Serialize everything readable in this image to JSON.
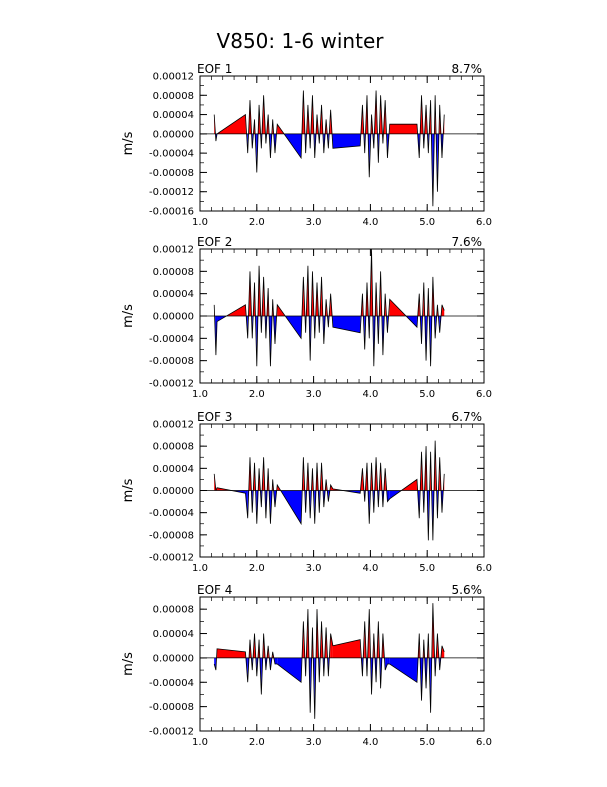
{
  "figure": {
    "title": "V850: 1-6 winter",
    "ylabel": "m/s"
  },
  "chart_data": [
    {
      "type": "area",
      "panel_label": "EOF 1",
      "percent": "8.7%",
      "xlim": [
        1.0,
        6.0
      ],
      "ylim": [
        -0.00016,
        0.00012
      ],
      "xticks": [
        "1.0",
        "2.0",
        "3.0",
        "4.0",
        "5.0",
        "6.0"
      ],
      "yticks": [
        "0.00012",
        "0.00008",
        "0.00004",
        "0.00000",
        "-0.00004",
        "-0.00008",
        "-0.00012",
        "-0.00016"
      ],
      "ylabel": "m/s",
      "positive_color": "#ff0000",
      "negative_color": "#0000ff",
      "x": [
        1.25,
        1.28,
        1.3,
        1.8,
        1.84,
        1.88,
        1.92,
        1.96,
        2.0,
        2.04,
        2.08,
        2.12,
        2.16,
        2.2,
        2.24,
        2.28,
        2.32,
        2.36,
        2.78,
        2.82,
        2.86,
        2.9,
        2.94,
        2.98,
        3.02,
        3.06,
        3.1,
        3.14,
        3.18,
        3.22,
        3.26,
        3.3,
        3.34,
        3.82,
        3.86,
        3.9,
        3.94,
        3.98,
        4.02,
        4.06,
        4.1,
        4.14,
        4.18,
        4.22,
        4.26,
        4.3,
        4.34,
        4.82,
        4.86,
        4.9,
        4.94,
        4.98,
        5.02,
        5.06,
        5.1,
        5.14,
        5.18,
        5.22,
        5.26,
        5.3
      ],
      "y": [
        4e-05,
        -1.5e-05,
        0.0,
        4e-05,
        -4e-05,
        7e-05,
        -3e-05,
        3e-05,
        -8e-05,
        6e-05,
        -3e-05,
        8e-05,
        -2e-05,
        4e-05,
        -5e-05,
        3e-05,
        -4e-05,
        2e-05,
        -5e-05,
        9e-05,
        -4e-05,
        6e-05,
        -3e-05,
        8e-05,
        -5e-05,
        4e-05,
        -2e-05,
        6e-05,
        -4e-05,
        3e-05,
        -3e-05,
        5e-05,
        -3e-05,
        -2.5e-05,
        6e-05,
        -4e-05,
        8e-05,
        -9e-05,
        4e-05,
        -3e-05,
        9e-05,
        -6e-05,
        8e-05,
        -2e-05,
        7e-05,
        -5e-05,
        2e-05,
        2e-05,
        -5e-05,
        8e-05,
        -3e-05,
        6e-05,
        -4e-05,
        7e-05,
        -0.00015,
        8e-05,
        -0.00012,
        6e-05,
        -5e-05,
        4e-05
      ]
    },
    {
      "type": "area",
      "panel_label": "EOF 2",
      "percent": "7.6%",
      "xlim": [
        1.0,
        6.0
      ],
      "ylim": [
        -0.00012,
        0.00012
      ],
      "xticks": [
        "1.0",
        "2.0",
        "3.0",
        "4.0",
        "5.0",
        "6.0"
      ],
      "yticks": [
        "0.00012",
        "0.00008",
        "0.00004",
        "0.00000",
        "-0.00004",
        "-0.00008",
        "-0.00012"
      ],
      "ylabel": "m/s",
      "positive_color": "#ff0000",
      "negative_color": "#0000ff",
      "x": [
        1.25,
        1.28,
        1.3,
        1.8,
        1.84,
        1.88,
        1.92,
        1.96,
        2.0,
        2.04,
        2.08,
        2.12,
        2.16,
        2.2,
        2.24,
        2.28,
        2.32,
        2.36,
        2.78,
        2.82,
        2.86,
        2.9,
        2.94,
        2.98,
        3.02,
        3.06,
        3.1,
        3.14,
        3.18,
        3.22,
        3.26,
        3.3,
        3.34,
        3.82,
        3.86,
        3.9,
        3.94,
        3.98,
        4.02,
        4.06,
        4.1,
        4.14,
        4.18,
        4.22,
        4.26,
        4.3,
        4.34,
        4.82,
        4.86,
        4.9,
        4.94,
        4.98,
        5.02,
        5.06,
        5.1,
        5.14,
        5.18,
        5.22,
        5.26,
        5.3
      ],
      "y": [
        2e-05,
        -7e-05,
        -1e-05,
        2e-05,
        -4e-05,
        8e-05,
        -4e-05,
        6e-05,
        -9e-05,
        9e-05,
        -3e-05,
        7e-05,
        -4e-05,
        5e-05,
        -9e-05,
        3e-05,
        -5e-05,
        2e-05,
        -4e-05,
        7e-05,
        -3e-05,
        9e-05,
        -8e-05,
        8e-05,
        -4e-05,
        6e-05,
        -3e-05,
        7e-05,
        -5e-05,
        3e-05,
        -2e-05,
        4e-05,
        -2e-05,
        -3e-05,
        4e-05,
        -6e-05,
        6e-05,
        -4e-05,
        0.00012,
        -9e-05,
        6e-05,
        -5e-05,
        8e-05,
        -7e-05,
        4e-05,
        -3e-05,
        3e-05,
        -2e-05,
        4e-05,
        -5e-05,
        6e-05,
        -8e-05,
        5e-05,
        -9e-05,
        7e-05,
        -4e-05,
        2e-05,
        -3e-05,
        2e-05,
        1e-05
      ]
    },
    {
      "type": "area",
      "panel_label": "EOF 3",
      "percent": "6.7%",
      "xlim": [
        1.0,
        6.0
      ],
      "ylim": [
        -0.00012,
        0.00012
      ],
      "xticks": [
        "1.0",
        "2.0",
        "3.0",
        "4.0",
        "5.0",
        "6.0"
      ],
      "yticks": [
        "0.00012",
        "0.00008",
        "0.00004",
        "0.00000",
        "-0.00004",
        "-0.00008",
        "-0.00012"
      ],
      "ylabel": "m/s",
      "positive_color": "#ff0000",
      "negative_color": "#0000ff",
      "x": [
        1.25,
        1.28,
        1.3,
        1.8,
        1.84,
        1.88,
        1.92,
        1.96,
        2.0,
        2.04,
        2.08,
        2.12,
        2.16,
        2.2,
        2.24,
        2.28,
        2.32,
        2.36,
        2.78,
        2.82,
        2.86,
        2.9,
        2.94,
        2.98,
        3.02,
        3.06,
        3.1,
        3.14,
        3.18,
        3.22,
        3.26,
        3.3,
        3.34,
        3.82,
        3.86,
        3.9,
        3.94,
        3.98,
        4.02,
        4.06,
        4.1,
        4.14,
        4.18,
        4.22,
        4.26,
        4.3,
        4.34,
        4.82,
        4.86,
        4.9,
        4.94,
        4.98,
        5.02,
        5.06,
        5.1,
        5.14,
        5.18,
        5.22,
        5.26,
        5.3
      ],
      "y": [
        3e-05,
        0.0,
        5e-06,
        -5e-06,
        -5e-05,
        6e-05,
        -4e-05,
        5e-05,
        -6e-05,
        4e-05,
        -3e-05,
        6e-05,
        -5e-05,
        4e-05,
        -6e-05,
        2e-05,
        -3e-05,
        1e-05,
        -6e-05,
        6e-05,
        -4e-05,
        5e-05,
        -5e-05,
        4e-05,
        -6e-05,
        5e-05,
        -4e-05,
        5e-05,
        -3e-05,
        2e-05,
        -2e-05,
        1e-05,
        3e-06,
        -5e-06,
        4e-05,
        -2e-05,
        5e-05,
        -6e-05,
        5e-05,
        -4e-05,
        6e-05,
        -3e-05,
        5e-05,
        -3e-05,
        4e-05,
        -2e-05,
        -1.5e-05,
        2e-05,
        -5e-05,
        7e-05,
        -4e-05,
        8e-05,
        -9e-05,
        7e-05,
        -9e-05,
        9e-05,
        -5e-05,
        6e-05,
        -4e-05,
        3e-05
      ]
    },
    {
      "type": "area",
      "panel_label": "EOF 4",
      "percent": "5.6%",
      "xlim": [
        1.0,
        6.0
      ],
      "ylim": [
        -0.00012,
        0.0001
      ],
      "xticks": [
        "1.0",
        "2.0",
        "3.0",
        "4.0",
        "5.0",
        "6.0"
      ],
      "yticks": [
        "0.00008",
        "0.00004",
        "0.00000",
        "-0.00004",
        "-0.00008",
        "-0.00012"
      ],
      "ylabel": "m/s",
      "positive_color": "#ff0000",
      "negative_color": "#0000ff",
      "x": [
        1.25,
        1.28,
        1.3,
        1.8,
        1.84,
        1.88,
        1.92,
        1.96,
        2.0,
        2.04,
        2.08,
        2.12,
        2.16,
        2.2,
        2.24,
        2.28,
        2.32,
        2.36,
        2.78,
        2.82,
        2.86,
        2.9,
        2.94,
        2.98,
        3.02,
        3.06,
        3.1,
        3.14,
        3.18,
        3.22,
        3.26,
        3.3,
        3.34,
        3.82,
        3.86,
        3.9,
        3.94,
        3.98,
        4.02,
        4.06,
        4.1,
        4.14,
        4.18,
        4.22,
        4.26,
        4.3,
        4.34,
        4.82,
        4.86,
        4.9,
        4.94,
        4.98,
        5.02,
        5.06,
        5.1,
        5.14,
        5.18,
        5.22,
        5.26,
        5.3
      ],
      "y": [
        -1e-05,
        -2e-05,
        1.5e-05,
        1e-05,
        -4e-05,
        3e-05,
        -2e-05,
        4e-05,
        -3e-05,
        3e-05,
        -6e-05,
        4e-05,
        -2e-05,
        2e-05,
        -2e-05,
        1e-05,
        -1e-05,
        -1e-05,
        -4e-05,
        6e-05,
        -3e-05,
        8e-05,
        -9e-05,
        5e-05,
        -0.0001,
        8e-05,
        -4e-05,
        6e-05,
        -3e-05,
        5e-05,
        -3e-05,
        4e-05,
        2e-05,
        3e-05,
        -3e-05,
        6e-05,
        -3e-05,
        8e-05,
        -6e-05,
        4e-05,
        -4e-05,
        6e-05,
        -5e-05,
        4e-05,
        -2e-05,
        -1e-05,
        -1e-05,
        -4e-05,
        4e-05,
        -7e-05,
        3e-05,
        -5e-05,
        4e-05,
        -9e-05,
        9e-05,
        -3e-05,
        4e-05,
        -2e-05,
        2e-05,
        1e-05
      ]
    }
  ]
}
